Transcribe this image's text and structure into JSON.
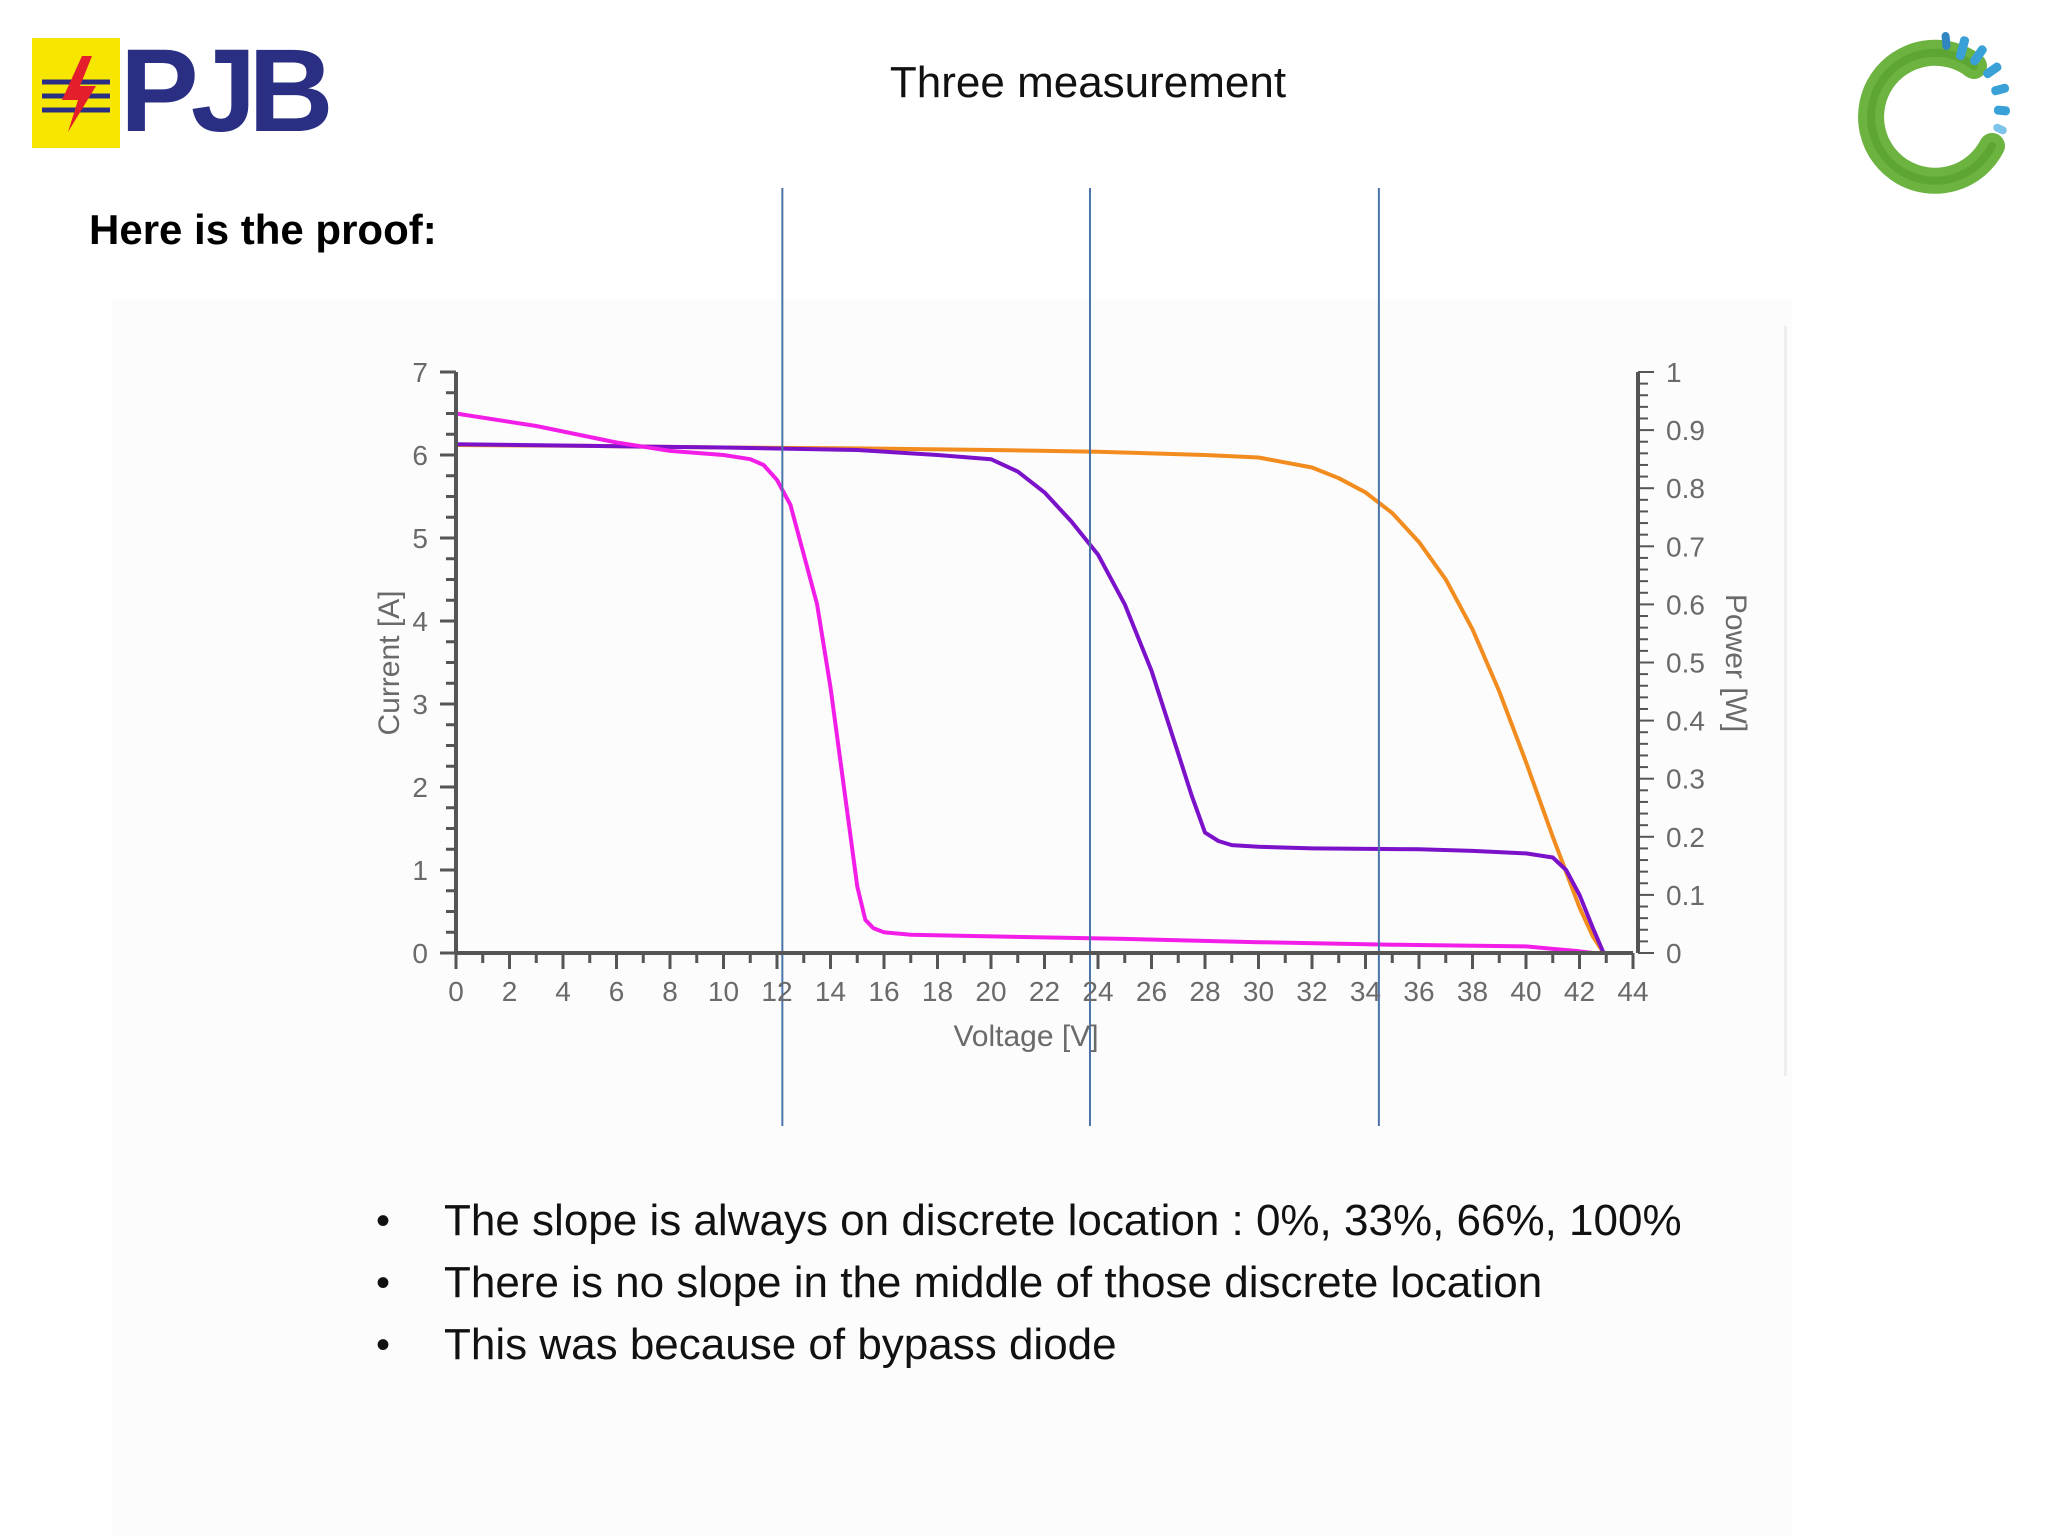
{
  "header": {
    "logo_left_text": "PJB",
    "title": "Three measurement"
  },
  "subtitle": "Here is the proof:",
  "colors": {
    "series_orange": "#f28c1e",
    "series_purple": "#7b12c9",
    "series_magenta": "#f21ee8",
    "axis": "#555555",
    "marker_lines": "#4a74a8",
    "axis_text": "#6a6a6a"
  },
  "chart_data": {
    "type": "line",
    "xlabel": "Voltage [V]",
    "ylabel": "Current [A]",
    "y2label": "Power [W]",
    "xlim": [
      0,
      44
    ],
    "ylim": [
      0,
      7
    ],
    "y2lim": [
      0,
      1
    ],
    "xticks": [
      0,
      2,
      4,
      6,
      8,
      10,
      12,
      14,
      16,
      18,
      20,
      22,
      24,
      26,
      28,
      30,
      32,
      34,
      36,
      38,
      40,
      42,
      44
    ],
    "yticks": [
      0,
      1,
      2,
      3,
      4,
      5,
      6,
      7
    ],
    "y2ticks": [
      "0",
      "0.1",
      "0.2",
      "0.3",
      "0.4",
      "0.5",
      "0.6",
      "0.7",
      "0.8",
      "0.9",
      "1"
    ],
    "grid": false,
    "vertical_markers_x": [
      12.2,
      23.7,
      34.5
    ],
    "series": [
      {
        "color": "#f28c1e",
        "x": [
          0,
          5,
          10,
          15,
          20,
          24,
          28,
          30,
          32,
          33,
          34,
          35,
          36,
          37,
          38,
          39,
          40,
          41,
          42,
          42.5,
          42.9
        ],
        "y": [
          6.12,
          6.11,
          6.09,
          6.08,
          6.06,
          6.04,
          6.0,
          5.97,
          5.85,
          5.72,
          5.55,
          5.3,
          4.95,
          4.5,
          3.9,
          3.15,
          2.3,
          1.4,
          0.55,
          0.2,
          0
        ]
      },
      {
        "color": "#7b12c9",
        "x": [
          0,
          5,
          10,
          15,
          18,
          20,
          21,
          22,
          23,
          24,
          25,
          26,
          27,
          27.5,
          28,
          28.5,
          29,
          30,
          32,
          36,
          38,
          40,
          41,
          41.5,
          42,
          42.5,
          42.9
        ],
        "y": [
          6.13,
          6.11,
          6.09,
          6.06,
          6.0,
          5.95,
          5.8,
          5.55,
          5.2,
          4.8,
          4.2,
          3.4,
          2.4,
          1.9,
          1.45,
          1.35,
          1.3,
          1.28,
          1.26,
          1.25,
          1.23,
          1.2,
          1.15,
          1.0,
          0.7,
          0.3,
          0
        ]
      },
      {
        "color": "#f21ee8",
        "x": [
          0,
          3,
          6,
          8,
          10,
          11,
          11.5,
          12,
          12.5,
          13,
          13.5,
          14,
          14.5,
          15,
          15.3,
          15.6,
          16,
          17,
          20,
          25,
          30,
          35,
          40,
          41,
          42,
          42.5
        ],
        "y": [
          6.5,
          6.35,
          6.15,
          6.05,
          6.0,
          5.95,
          5.88,
          5.7,
          5.4,
          4.8,
          4.2,
          3.2,
          2.0,
          0.8,
          0.4,
          0.3,
          0.25,
          0.22,
          0.2,
          0.17,
          0.13,
          0.1,
          0.08,
          0.05,
          0.02,
          0
        ]
      }
    ]
  },
  "bullets": [
    "The slope is always on discrete location : 0%, 33%, 66%, 100%",
    "There is no slope in the middle of those discrete location",
    "This was because of bypass diode"
  ]
}
